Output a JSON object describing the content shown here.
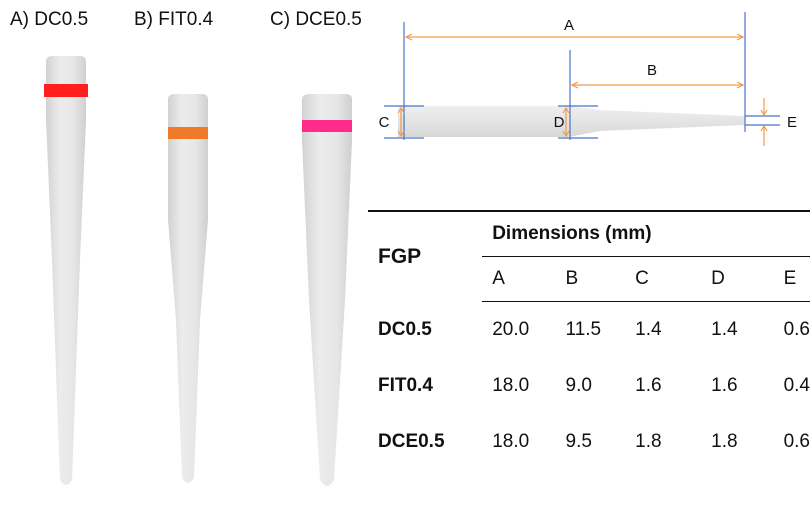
{
  "figure_labels": [
    "A) DC0.5",
    "B) FIT0.4",
    "C) DCE0.5"
  ],
  "colors": {
    "cone": "#e4e4e4",
    "dc05_band": "#ff1f1f",
    "fit04_band": "#f07a2a",
    "dce05_band": "#ff2a8a",
    "dimension_line": "#f19a4e",
    "reference_line": "#4a74c8"
  },
  "dimension_letters": [
    "A",
    "B",
    "C",
    "D",
    "E"
  ],
  "table": {
    "row_header": "FGP",
    "group_header": "Dimensions (mm)",
    "columns": [
      "A",
      "B",
      "C",
      "D",
      "E"
    ],
    "rows": [
      {
        "name": "DC0.5",
        "values": [
          "20.0",
          "11.5",
          "1.4",
          "1.4",
          "0.6"
        ]
      },
      {
        "name": "FIT0.4",
        "values": [
          "18.0",
          "9.0",
          "1.6",
          "1.6",
          "0.4"
        ]
      },
      {
        "name": "DCE0.5",
        "values": [
          "18.0",
          "9.5",
          "1.8",
          "1.8",
          "0.6"
        ]
      }
    ]
  }
}
